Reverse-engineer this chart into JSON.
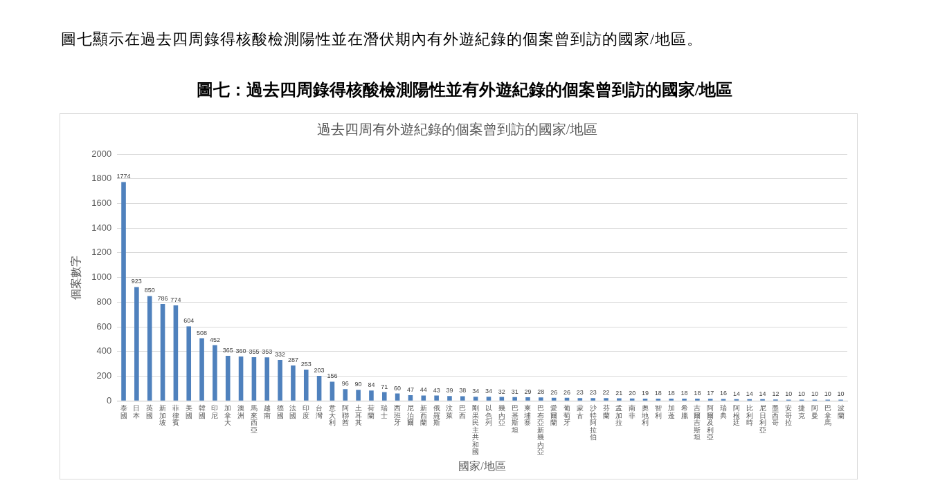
{
  "chart_data": {
    "type": "bar",
    "title": "圖七：過去四周錄得核酸檢測陽性並有外遊紀錄的個案曾到訪的國家/地區",
    "subtitle": "過去四周有外遊紀錄的個案曾到訪的國家/地區",
    "annotations": [
      "圖七顯示在過去四周錄得核酸檢測陽性並在潛伏期內有外遊紀錄的個案曾到訪的國家/地區。"
    ],
    "xlabel": "國家/地區",
    "ylabel": "個案數字",
    "categories": [
      "泰國",
      "日本",
      "英國",
      "新加坡",
      "菲律賓",
      "美國",
      "韓國",
      "印尼",
      "加拿大",
      "澳洲",
      "馬來西亞",
      "越南",
      "德國",
      "法國",
      "印度",
      "台灣",
      "意大利",
      "阿聯酋",
      "土耳其",
      "荷蘭",
      "瑞士",
      "西班牙",
      "尼泊爾",
      "新西蘭",
      "俄羅斯",
      "汶萊",
      "巴西",
      "剛果民主共和國",
      "以色列",
      "幾內亞",
      "巴基斯坦",
      "柬埔寨",
      "巴布亞新幾內亞",
      "愛爾蘭",
      "葡萄牙",
      "蒙古",
      "沙特阿拉伯",
      "芬蘭",
      "孟加拉",
      "南非",
      "奧地利",
      "智利",
      "加蓬",
      "希臘",
      "吉爾吉斯坦",
      "阿爾及利亞",
      "瑞典",
      "阿根廷",
      "比利時",
      "尼日利亞",
      "墨西哥",
      "安哥拉",
      "捷克",
      "阿曼",
      "巴拿馬",
      "波蘭"
    ],
    "values": [
      1774,
      923,
      850,
      786,
      774,
      604,
      508,
      452,
      365,
      360,
      355,
      353,
      332,
      287,
      253,
      203,
      156,
      96,
      90,
      84,
      71,
      60,
      47,
      44,
      43,
      39,
      38,
      34,
      34,
      32,
      31,
      29,
      28,
      26,
      26,
      23,
      23,
      22,
      21,
      20,
      19,
      18,
      18,
      18,
      18,
      17,
      16,
      14,
      14,
      14,
      12,
      10,
      10,
      10,
      10,
      10
    ],
    "color": "#4f81bd",
    "ylim": [
      0,
      2000
    ],
    "yticks": [
      0,
      200,
      400,
      600,
      800,
      1000,
      1200,
      1400,
      1600,
      1800,
      2000
    ],
    "grid": "y",
    "data_labels": true,
    "legend": false
  }
}
